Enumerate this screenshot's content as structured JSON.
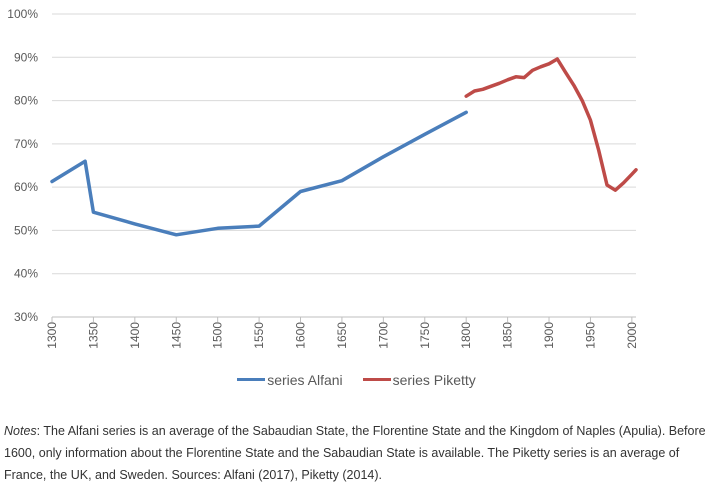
{
  "chart_data": {
    "type": "line",
    "title": "",
    "xlabel": "",
    "ylabel": "",
    "x_ticks": [
      1300,
      1350,
      1400,
      1450,
      1500,
      1550,
      1600,
      1650,
      1700,
      1750,
      1800,
      1850,
      1900,
      1950,
      2000
    ],
    "y_ticks": [
      "30%",
      "40%",
      "50%",
      "60%",
      "70%",
      "80%",
      "90%",
      "100%"
    ],
    "xlim": [
      1300,
      2005
    ],
    "ylim": [
      30,
      100
    ],
    "grid": "horizontal",
    "legend_position": "bottom",
    "series": [
      {
        "name": "series Alfani",
        "color": "#4A7EBB",
        "x": [
          1300,
          1340,
          1350,
          1400,
          1450,
          1500,
          1550,
          1600,
          1650,
          1700,
          1750,
          1800
        ],
        "y": [
          61.3,
          66.0,
          54.2,
          51.5,
          49.0,
          50.5,
          51.0,
          59.0,
          61.5,
          67.0,
          72.2,
          77.3
        ]
      },
      {
        "name": "series Piketty",
        "color": "#BE4B48",
        "x": [
          1800,
          1810,
          1820,
          1830,
          1840,
          1850,
          1860,
          1870,
          1880,
          1890,
          1900,
          1910,
          1920,
          1930,
          1940,
          1950,
          1960,
          1970,
          1980,
          1990,
          2000,
          2005
        ],
        "y": [
          81.0,
          82.2,
          82.6,
          83.3,
          84.0,
          84.8,
          85.5,
          85.3,
          87.0,
          87.8,
          88.5,
          89.6,
          86.5,
          83.5,
          80.0,
          75.5,
          68.5,
          60.5,
          59.3,
          61.0,
          63.0,
          64.0
        ]
      }
    ]
  },
  "notes": {
    "label": "Notes",
    "text": ": The Alfani series is an average of the Sabaudian State, the Florentine State and the Kingdom of Naples (Apulia). Before 1600, only information about the Florentine State and the Sabaudian State is available. The Piketty series is an average of France, the UK, and Sweden. Sources: Alfani (2017), Piketty (2014)."
  }
}
